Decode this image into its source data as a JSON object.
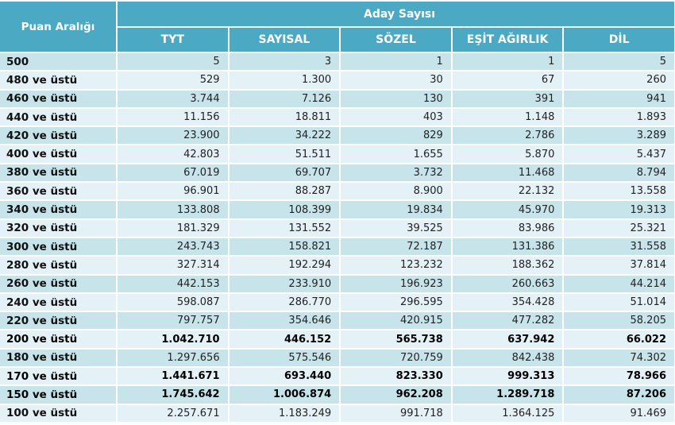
{
  "header": {
    "range_label": "Puan Aralığı",
    "group_label": "Aday Sayısı",
    "columns": [
      "TYT",
      "SAYISAL",
      "SÖZEL",
      "EŞİT AĞIRLIK",
      "DİL"
    ]
  },
  "rows": [
    {
      "label": "500",
      "values": [
        "5",
        "3",
        "1",
        "1",
        "5"
      ],
      "bold": false
    },
    {
      "label": "480 ve üstü",
      "values": [
        "529",
        "1.300",
        "30",
        "67",
        "260"
      ],
      "bold": false
    },
    {
      "label": "460 ve üstü",
      "values": [
        "3.744",
        "7.126",
        "130",
        "391",
        "941"
      ],
      "bold": false
    },
    {
      "label": "440 ve üstü",
      "values": [
        "11.156",
        "18.811",
        "403",
        "1.148",
        "1.893"
      ],
      "bold": false
    },
    {
      "label": "420 ve üstü",
      "values": [
        "23.900",
        "34.222",
        "829",
        "2.786",
        "3.289"
      ],
      "bold": false
    },
    {
      "label": "400 ve üstü",
      "values": [
        "42.803",
        "51.511",
        "1.655",
        "5.870",
        "5.437"
      ],
      "bold": false
    },
    {
      "label": "380 ve üstü",
      "values": [
        "67.019",
        "69.707",
        "3.732",
        "11.468",
        "8.794"
      ],
      "bold": false
    },
    {
      "label": "360 ve üstü",
      "values": [
        "96.901",
        "88.287",
        "8.900",
        "22.132",
        "13.558"
      ],
      "bold": false
    },
    {
      "label": "340 ve üstü",
      "values": [
        "133.808",
        "108.399",
        "19.834",
        "45.970",
        "19.313"
      ],
      "bold": false
    },
    {
      "label": "320 ve üstü",
      "values": [
        "181.329",
        "131.552",
        "39.525",
        "83.986",
        "25.321"
      ],
      "bold": false
    },
    {
      "label": "300 ve üstü",
      "values": [
        "243.743",
        "158.821",
        "72.187",
        "131.386",
        "31.558"
      ],
      "bold": false
    },
    {
      "label": "280 ve üstü",
      "values": [
        "327.314",
        "192.294",
        "123.232",
        "188.362",
        "37.814"
      ],
      "bold": false
    },
    {
      "label": "260 ve üstü",
      "values": [
        "442.153",
        "233.910",
        "196.923",
        "260.663",
        "44.214"
      ],
      "bold": false
    },
    {
      "label": "240 ve üstü",
      "values": [
        "598.087",
        "286.770",
        "296.595",
        "354.428",
        "51.014"
      ],
      "bold": false
    },
    {
      "label": "220 ve üstü",
      "values": [
        "797.757",
        "354.646",
        "420.915",
        "477.282",
        "58.205"
      ],
      "bold": false
    },
    {
      "label": "200 ve üstü",
      "values": [
        "1.042.710",
        "446.152",
        "565.738",
        "637.942",
        "66.022"
      ],
      "bold": true
    },
    {
      "label": "180 ve üstü",
      "values": [
        "1.297.656",
        "575.546",
        "720.759",
        "842.438",
        "74.302"
      ],
      "bold": false
    },
    {
      "label": "170 ve üstü",
      "values": [
        "1.441.671",
        "693.440",
        "823.330",
        "999.313",
        "78.966"
      ],
      "bold": true
    },
    {
      "label": "150 ve üstü",
      "values": [
        "1.745.642",
        "1.006.874",
        "962.208",
        "1.289.718",
        "87.206"
      ],
      "bold": true
    },
    {
      "label": "100 ve üstü",
      "values": [
        "2.257.671",
        "1.183.249",
        "991.718",
        "1.364.125",
        "91.469"
      ],
      "bold": false
    }
  ]
}
